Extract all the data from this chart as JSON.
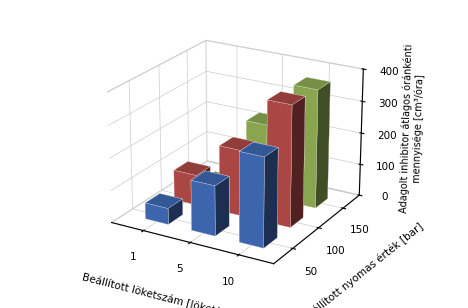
{
  "zlabel": "Adagolt inhibitor átlagos óránkénti\nmennyisége [cm³/óra]",
  "xlabel": "Beállított löketszám [löket/perc]",
  "ylabel": "Beállított nyomas érték [bar]",
  "x_tick_labels": [
    "1",
    "5",
    "10"
  ],
  "y_tick_labels": [
    "50",
    "100",
    "150"
  ],
  "zlim": [
    0,
    400
  ],
  "zticks": [
    0,
    100,
    200,
    300,
    400
  ],
  "series": [
    {
      "label": "50 bar",
      "color": "#4472C4",
      "values": [
        50,
        155,
        275
      ]
    },
    {
      "label": "100 bar",
      "color": "#C0504D",
      "values": [
        95,
        205,
        375
      ]
    },
    {
      "label": "150 bar",
      "color": "#9BBB59",
      "values": [
        5,
        230,
        370
      ]
    }
  ],
  "background_color": "#FFFFFF",
  "figsize": [
    4.68,
    3.08
  ],
  "dpi": 100,
  "zlabel_fontsize": 7.0,
  "xlabel_fontsize": 7.5,
  "ylabel_fontsize": 7.5,
  "tick_fontsize": 7.5,
  "bar_width": 0.5,
  "bar_depth": 0.5,
  "elev": 22,
  "azim": -60
}
